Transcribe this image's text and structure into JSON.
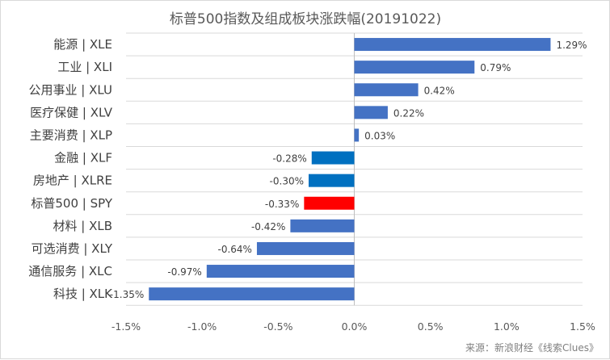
{
  "chart_data": {
    "type": "bar",
    "orientation": "horizontal",
    "title": "标普500指数及组成板块涨跌幅(20191022)",
    "categories": [
      "能源 | XLE",
      "工业 | XLI",
      "公用事业 | XLU",
      "医疗保健 | XLV",
      "主要消费 | XLP",
      "金融 | XLF",
      "房地产 | XLRE",
      "标普500 | SPY",
      "材料 | XLB",
      "可选消费 | XLY",
      "通信服务 | XLC",
      "科技 | XLK"
    ],
    "values": [
      1.29,
      0.79,
      0.42,
      0.22,
      0.03,
      -0.28,
      -0.3,
      -0.33,
      -0.42,
      -0.64,
      -0.97,
      -1.35
    ],
    "data_labels": [
      "1.29%",
      "0.79%",
      "0.42%",
      "0.22%",
      "0.03%",
      "-0.28%",
      "-0.30%",
      "-0.33%",
      "-0.42%",
      "-0.64%",
      "-0.97%",
      "-1.35%"
    ],
    "xlim": [
      -1.5,
      1.5
    ],
    "xticks": [
      -1.5,
      -1.0,
      -0.5,
      0.0,
      0.5,
      1.0,
      1.5
    ],
    "xtick_labels": [
      "-1.5%",
      "-1.0%",
      "-0.5%",
      "0.0%",
      "0.5%",
      "1.0%",
      "1.5%"
    ],
    "xlabel": "",
    "ylabel": "",
    "grid": "horizontal",
    "legend": "none",
    "colors": {
      "positive": "#4472c4",
      "negative": "#0070c0",
      "highlight": "#ff0000",
      "highlight_category": "标普500 | SPY"
    }
  },
  "source_note": "来源：新浪财经《线索Clues》"
}
